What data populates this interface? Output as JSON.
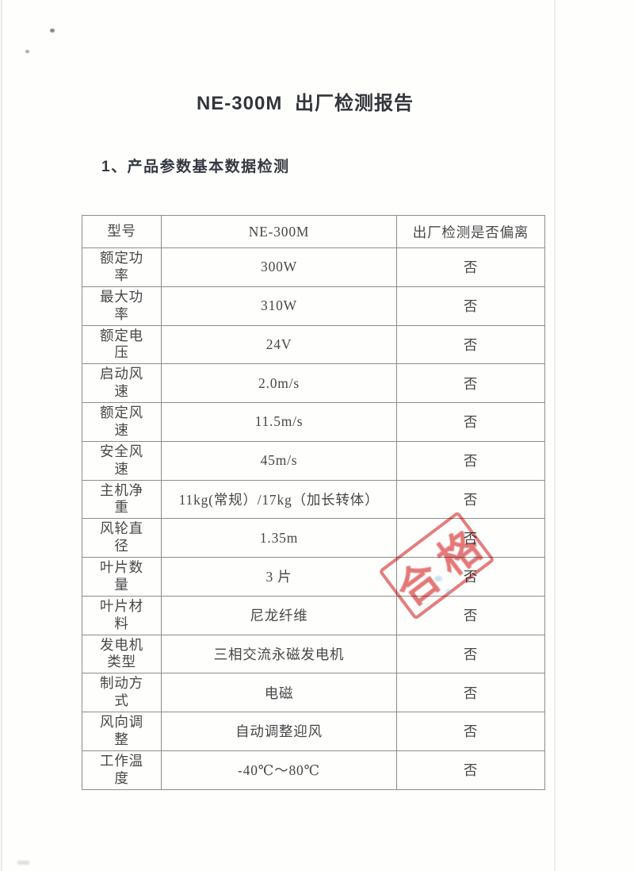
{
  "document": {
    "title": "NE-300M 出厂检测报告",
    "section_heading": "1、产品参数基本数据检测"
  },
  "table": {
    "header": {
      "model_label": "型号",
      "model_value": "NE-300M",
      "deviation_label": "出厂检测是否偏离"
    },
    "rows": [
      {
        "label": "额定功率",
        "value": "300W",
        "deviation": "否"
      },
      {
        "label": "最大功率",
        "value": "310W",
        "deviation": "否"
      },
      {
        "label": "额定电压",
        "value": "24V",
        "deviation": "否"
      },
      {
        "label": "启动风速",
        "value": "2.0m/s",
        "deviation": "否"
      },
      {
        "label": "额定风速",
        "value": "11.5m/s",
        "deviation": "否"
      },
      {
        "label": "安全风速",
        "value": "45m/s",
        "deviation": "否"
      },
      {
        "label": "主机净重",
        "value": "11kg(常规）/17kg（加长转体）",
        "deviation": "否"
      },
      {
        "label": "风轮直径",
        "value": "1.35m",
        "deviation": "否"
      },
      {
        "label": "叶片数量",
        "value": "3 片",
        "deviation": "否"
      },
      {
        "label": "叶片材料",
        "value": "尼龙纤维",
        "deviation": "否"
      },
      {
        "label": "发电机类型",
        "value": "三相交流永磁发电机",
        "deviation": "否"
      },
      {
        "label": "制动方式",
        "value": "电磁",
        "deviation": "否"
      },
      {
        "label": "风向调整",
        "value": "自动调整迎风",
        "deviation": "否"
      },
      {
        "label": "工作温度",
        "value": "-40℃～80℃",
        "deviation": "否"
      }
    ]
  },
  "stamp": {
    "text": "合格",
    "color": "#de5a5a"
  }
}
